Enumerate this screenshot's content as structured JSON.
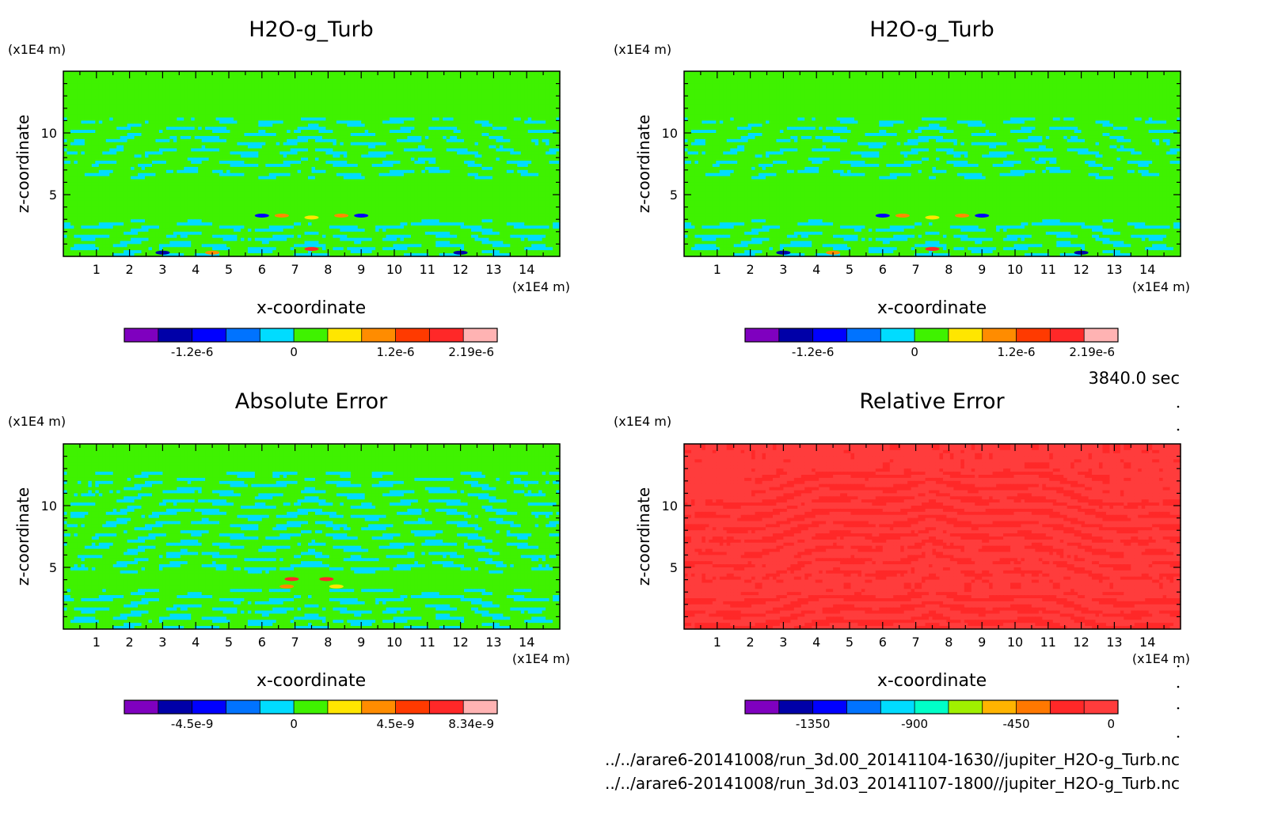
{
  "time_label": "3840.0 sec",
  "files": [
    "../../arare6-20141008/run_3d.00_20141104-1630//jupiter_H2O-g_Turb.nc",
    "../../arare6-20141008/run_3d.03_20141107-1800//jupiter_H2O-g_Turb.nc"
  ],
  "chart_data": [
    {
      "type": "heatmap",
      "title": "H2O-g_Turb",
      "xlabel": "x-coordinate",
      "ylabel": "z-coordinate",
      "x_unit": "(x1E4 m)",
      "y_unit": "(x1E4 m)",
      "xlim": [
        0,
        15
      ],
      "ylim": [
        0,
        15
      ],
      "xticks": [
        "1",
        "2",
        "3",
        "4",
        "5",
        "6",
        "7",
        "8",
        "9",
        "10",
        "11",
        "12",
        "13",
        "14"
      ],
      "yticks": [
        "5",
        "10"
      ],
      "pattern": "field",
      "colorbar": {
        "colors": [
          "#7f00bf",
          "#0000a8",
          "#0000ff",
          "#0073ff",
          "#00dcff",
          "#3ff200",
          "#ffe600",
          "#ff8c00",
          "#ff3a00",
          "#ff2828",
          "#ffb3b3"
        ],
        "labels": [
          "-1.2e-6",
          "0",
          "1.2e-6",
          "2.19e-6"
        ],
        "label_at_boundary": [
          2,
          5,
          8,
          11
        ]
      }
    },
    {
      "type": "heatmap",
      "title": "H2O-g_Turb",
      "xlabel": "x-coordinate",
      "ylabel": "z-coordinate",
      "x_unit": "(x1E4 m)",
      "y_unit": "(x1E4 m)",
      "xlim": [
        0,
        15
      ],
      "ylim": [
        0,
        15
      ],
      "xticks": [
        "1",
        "2",
        "3",
        "4",
        "5",
        "6",
        "7",
        "8",
        "9",
        "10",
        "11",
        "12",
        "13",
        "14"
      ],
      "yticks": [
        "5",
        "10"
      ],
      "pattern": "field",
      "colorbar": {
        "colors": [
          "#7f00bf",
          "#0000a8",
          "#0000ff",
          "#0073ff",
          "#00dcff",
          "#3ff200",
          "#ffe600",
          "#ff8c00",
          "#ff3a00",
          "#ff2828",
          "#ffb3b3"
        ],
        "labels": [
          "-1.2e-6",
          "0",
          "1.2e-6",
          "2.19e-6"
        ],
        "label_at_boundary": [
          2,
          5,
          8,
          11
        ]
      }
    },
    {
      "type": "heatmap",
      "title": "Absolute Error",
      "xlabel": "x-coordinate",
      "ylabel": "z-coordinate",
      "x_unit": "(x1E4 m)",
      "y_unit": "(x1E4 m)",
      "xlim": [
        0,
        15
      ],
      "ylim": [
        0,
        15
      ],
      "xticks": [
        "1",
        "2",
        "3",
        "4",
        "5",
        "6",
        "7",
        "8",
        "9",
        "10",
        "11",
        "12",
        "13",
        "14"
      ],
      "yticks": [
        "5",
        "10"
      ],
      "pattern": "abs",
      "colorbar": {
        "colors": [
          "#7f00bf",
          "#0000a8",
          "#0000ff",
          "#0073ff",
          "#00dcff",
          "#3ff200",
          "#ffe600",
          "#ff8c00",
          "#ff3a00",
          "#ff2828",
          "#ffb3b3"
        ],
        "labels": [
          "-4.5e-9",
          "0",
          "4.5e-9",
          "8.34e-9"
        ],
        "label_at_boundary": [
          2,
          5,
          8,
          11
        ]
      }
    },
    {
      "type": "heatmap",
      "title": "Relative Error",
      "xlabel": "x-coordinate",
      "ylabel": "z-coordinate",
      "x_unit": "(x1E4 m)",
      "y_unit": "(x1E4 m)",
      "xlim": [
        0,
        15
      ],
      "ylim": [
        0,
        15
      ],
      "xticks": [
        "1",
        "2",
        "3",
        "4",
        "5",
        "6",
        "7",
        "8",
        "9",
        "10",
        "11",
        "12",
        "13",
        "14"
      ],
      "yticks": [
        "5",
        "10"
      ],
      "pattern": "rel",
      "colorbar": {
        "colors": [
          "#7f00bf",
          "#0000a8",
          "#0000ff",
          "#0073ff",
          "#00dcff",
          "#00ffc8",
          "#a0f000",
          "#ffb400",
          "#ff7800",
          "#ff2828",
          "#ff3c3c"
        ],
        "labels": [
          "-1350",
          "-900",
          "-450",
          "0"
        ],
        "label_at_boundary": [
          2,
          5,
          8,
          11
        ]
      }
    }
  ]
}
